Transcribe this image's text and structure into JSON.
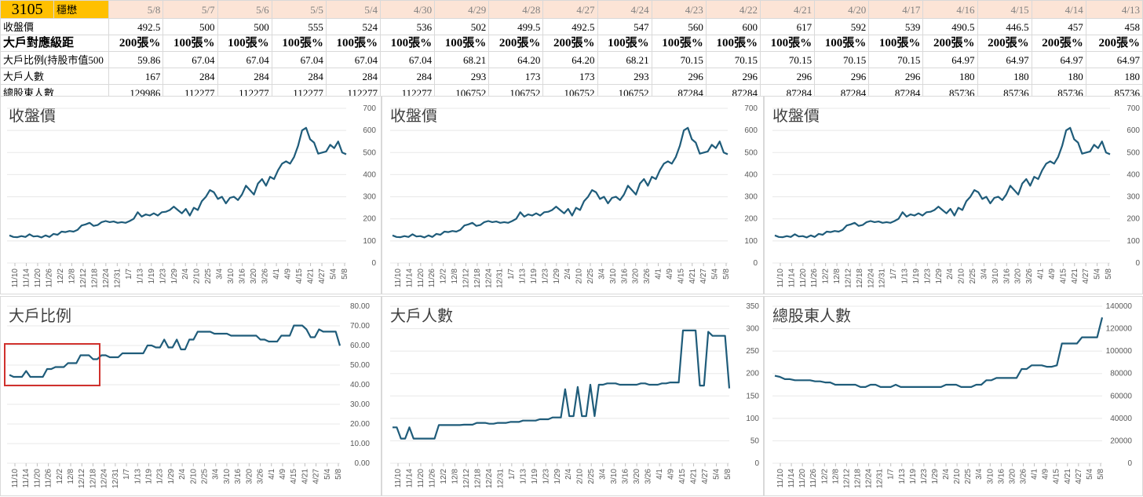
{
  "sheet": {
    "stock_code": "3105",
    "stock_name": "穩懋",
    "dates": [
      "5/8",
      "5/7",
      "5/6",
      "5/5",
      "5/4",
      "4/30",
      "4/29",
      "4/28",
      "4/27",
      "4/24",
      "4/23",
      "4/22",
      "4/21",
      "4/20",
      "4/17",
      "4/16",
      "4/15",
      "4/14",
      "4/13"
    ],
    "rows": [
      {
        "label": "收盤價",
        "values": [
          "492.5",
          "500",
          "500",
          "555",
          "524",
          "536",
          "502",
          "499.5",
          "492.5",
          "547",
          "560",
          "600",
          "617",
          "592",
          "539",
          "490.5",
          "446.5",
          "457",
          "458"
        ]
      },
      {
        "label": "大戶對應級距",
        "values": [
          "200張%",
          "100張%",
          "100張%",
          "100張%",
          "100張%",
          "100張%",
          "100張%",
          "200張%",
          "200張%",
          "100張%",
          "100張%",
          "100張%",
          "100張%",
          "100張%",
          "100張%",
          "200張%",
          "200張%",
          "200張%",
          "200張%"
        ]
      },
      {
        "label": "大戶比例(持股市值500",
        "values": [
          "59.86",
          "67.04",
          "67.04",
          "67.04",
          "67.04",
          "67.04",
          "68.21",
          "64.20",
          "64.20",
          "68.21",
          "70.15",
          "70.15",
          "70.15",
          "70.15",
          "70.15",
          "64.97",
          "64.97",
          "64.97",
          "64.97"
        ]
      },
      {
        "label": "大戶人數",
        "values": [
          "167",
          "284",
          "284",
          "284",
          "284",
          "284",
          "293",
          "173",
          "173",
          "293",
          "296",
          "296",
          "296",
          "296",
          "296",
          "180",
          "180",
          "180",
          "180"
        ]
      },
      {
        "label": "總股東人數",
        "values": [
          "129986",
          "112277",
          "112277",
          "112277",
          "112277",
          "112277",
          "106752",
          "106752",
          "106752",
          "106752",
          "87284",
          "87284",
          "87284",
          "87284",
          "87284",
          "85736",
          "85736",
          "85736",
          "85736"
        ]
      }
    ]
  },
  "x_ticks": [
    "11/10",
    "11/14",
    "11/20",
    "11/26",
    "12/2",
    "12/8",
    "12/12",
    "12/18",
    "12/24",
    "12/31",
    "1/7",
    "1/13",
    "1/19",
    "1/23",
    "1/29",
    "2/4",
    "2/10",
    "2/25",
    "3/4",
    "3/10",
    "3/16",
    "3/20",
    "3/26",
    "4/1",
    "4/9",
    "4/15",
    "4/21",
    "4/27",
    "5/4",
    "5/8"
  ],
  "x_ticks_large_panel": [
    "11/10",
    "11/14",
    "11/20",
    "11/26",
    "12/2",
    "12/8",
    "12/12",
    "12/18",
    "12/24",
    "12/31",
    "1/7",
    "1/13",
    "1/19",
    "1/23",
    "1/29",
    "2/4",
    "2/10",
    "2/25",
    "3/4",
    "3/10",
    "3/16",
    "3/20",
    "3/26",
    "4/1",
    "4/9",
    "4/15",
    "4/21",
    "4/27",
    "5/4",
    "5/8"
  ],
  "chart_data": [
    {
      "type": "line",
      "title": "收盤價",
      "color": "#1f5c7a",
      "ylim": [
        0,
        700
      ],
      "yticks": [
        "0",
        "100",
        "200",
        "300",
        "400",
        "500",
        "600",
        "700"
      ],
      "values": [
        125,
        118,
        117,
        122,
        118,
        130,
        120,
        122,
        116,
        125,
        118,
        132,
        128,
        142,
        140,
        145,
        142,
        150,
        170,
        175,
        182,
        168,
        172,
        185,
        190,
        185,
        188,
        182,
        185,
        182,
        190,
        200,
        230,
        210,
        220,
        215,
        225,
        215,
        230,
        232,
        240,
        255,
        240,
        225,
        245,
        215,
        250,
        240,
        280,
        300,
        330,
        320,
        290,
        300,
        270,
        295,
        300,
        285,
        310,
        350,
        330,
        310,
        360,
        380,
        350,
        390,
        380,
        420,
        450,
        460,
        450,
        480,
        530,
        600,
        612,
        560,
        545,
        495,
        500,
        505,
        535,
        520,
        550,
        500,
        492
      ]
    },
    {
      "type": "line",
      "title": "收盤價",
      "color": "#1f5c7a",
      "ylim": [
        0,
        700
      ],
      "yticks": [
        "0",
        "100",
        "200",
        "300",
        "400",
        "500",
        "600",
        "700"
      ],
      "values": [
        125,
        118,
        117,
        122,
        118,
        130,
        120,
        122,
        116,
        125,
        118,
        132,
        128,
        142,
        140,
        145,
        142,
        150,
        170,
        175,
        182,
        168,
        172,
        185,
        190,
        185,
        188,
        182,
        185,
        182,
        190,
        200,
        230,
        210,
        220,
        215,
        225,
        215,
        230,
        232,
        240,
        255,
        240,
        225,
        245,
        215,
        250,
        240,
        280,
        300,
        330,
        320,
        290,
        300,
        270,
        295,
        300,
        285,
        310,
        350,
        330,
        310,
        360,
        380,
        350,
        390,
        380,
        420,
        450,
        460,
        450,
        480,
        530,
        600,
        612,
        560,
        545,
        495,
        500,
        505,
        535,
        520,
        550,
        500,
        492
      ]
    },
    {
      "type": "line",
      "title": "收盤價",
      "color": "#1f5c7a",
      "ylim": [
        0,
        700
      ],
      "yticks": [
        "0",
        "100",
        "200",
        "300",
        "400",
        "500",
        "600",
        "700"
      ],
      "values": [
        125,
        118,
        117,
        122,
        118,
        130,
        120,
        122,
        116,
        125,
        118,
        132,
        128,
        142,
        140,
        145,
        142,
        150,
        170,
        175,
        182,
        168,
        172,
        185,
        190,
        185,
        188,
        182,
        185,
        182,
        190,
        200,
        230,
        210,
        220,
        215,
        225,
        215,
        230,
        232,
        240,
        255,
        240,
        225,
        245,
        215,
        250,
        240,
        280,
        300,
        330,
        320,
        290,
        300,
        270,
        295,
        300,
        285,
        310,
        350,
        330,
        310,
        360,
        380,
        350,
        390,
        380,
        420,
        450,
        460,
        450,
        480,
        530,
        600,
        612,
        560,
        545,
        495,
        500,
        505,
        535,
        520,
        550,
        500,
        492
      ]
    },
    {
      "type": "line",
      "title": "大戶比例",
      "color": "#1f5c7a",
      "ylim": [
        0,
        80
      ],
      "yticks": [
        "0.00",
        "10.00",
        "20.00",
        "30.00",
        "40.00",
        "50.00",
        "60.00",
        "70.00",
        "80.00"
      ],
      "values": [
        45,
        44,
        44,
        44,
        47,
        44,
        44,
        44,
        44,
        48,
        48,
        49,
        49,
        49,
        51,
        51,
        51,
        55,
        55,
        55,
        53,
        53,
        55,
        55,
        54,
        54,
        54,
        56,
        56,
        56,
        56,
        56,
        56,
        60,
        60,
        59,
        59,
        63,
        59,
        59,
        63,
        58,
        58,
        63,
        63,
        67,
        67,
        67,
        67,
        66,
        66,
        66,
        66,
        65,
        65,
        65,
        65,
        65,
        65,
        65,
        63,
        63,
        62,
        62,
        62,
        65,
        65,
        65,
        70.15,
        70.15,
        70.15,
        68.21,
        64.2,
        64.2,
        68.21,
        67.04,
        67.04,
        67.04,
        67.04,
        59.86
      ]
    },
    {
      "type": "line",
      "title": "大戶人數",
      "color": "#1f5c7a",
      "ylim": [
        0,
        350
      ],
      "yticks": [
        "0",
        "50",
        "100",
        "150",
        "200",
        "250",
        "300",
        "350"
      ],
      "values": [
        80,
        80,
        55,
        55,
        80,
        55,
        55,
        55,
        55,
        55,
        55,
        85,
        85,
        85,
        85,
        85,
        85,
        86,
        86,
        86,
        90,
        90,
        90,
        88,
        88,
        90,
        90,
        90,
        92,
        92,
        92,
        95,
        95,
        95,
        95,
        98,
        98,
        98,
        102,
        102,
        102,
        165,
        105,
        105,
        170,
        105,
        105,
        175,
        105,
        175,
        175,
        178,
        178,
        178,
        175,
        175,
        175,
        175,
        175,
        178,
        178,
        175,
        175,
        175,
        178,
        178,
        180,
        180,
        180,
        296,
        296,
        296,
        296,
        173,
        173,
        293,
        284,
        284,
        284,
        284,
        167
      ]
    },
    {
      "type": "line",
      "title": "總股東人數",
      "color": "#1f5c7a",
      "ylim": [
        0,
        140000
      ],
      "yticks": [
        "0",
        "20000",
        "40000",
        "60000",
        "80000",
        "100000",
        "120000",
        "140000"
      ],
      "values": [
        78000,
        77000,
        75000,
        75000,
        74000,
        74000,
        74000,
        74000,
        73000,
        73000,
        72000,
        72000,
        70000,
        70000,
        70000,
        70000,
        70000,
        68000,
        68000,
        70000,
        70000,
        68000,
        68000,
        68000,
        70000,
        68000,
        68000,
        68000,
        68000,
        68000,
        68000,
        68000,
        68000,
        68000,
        70000,
        70000,
        70000,
        68000,
        68000,
        68000,
        70000,
        70000,
        74000,
        74000,
        76000,
        76000,
        76000,
        76000,
        76000,
        84000,
        84000,
        87284,
        87284,
        87284,
        86000,
        86000,
        87284,
        106752,
        106752,
        106752,
        106752,
        112277,
        112277,
        112277,
        112277,
        129986
      ]
    }
  ]
}
